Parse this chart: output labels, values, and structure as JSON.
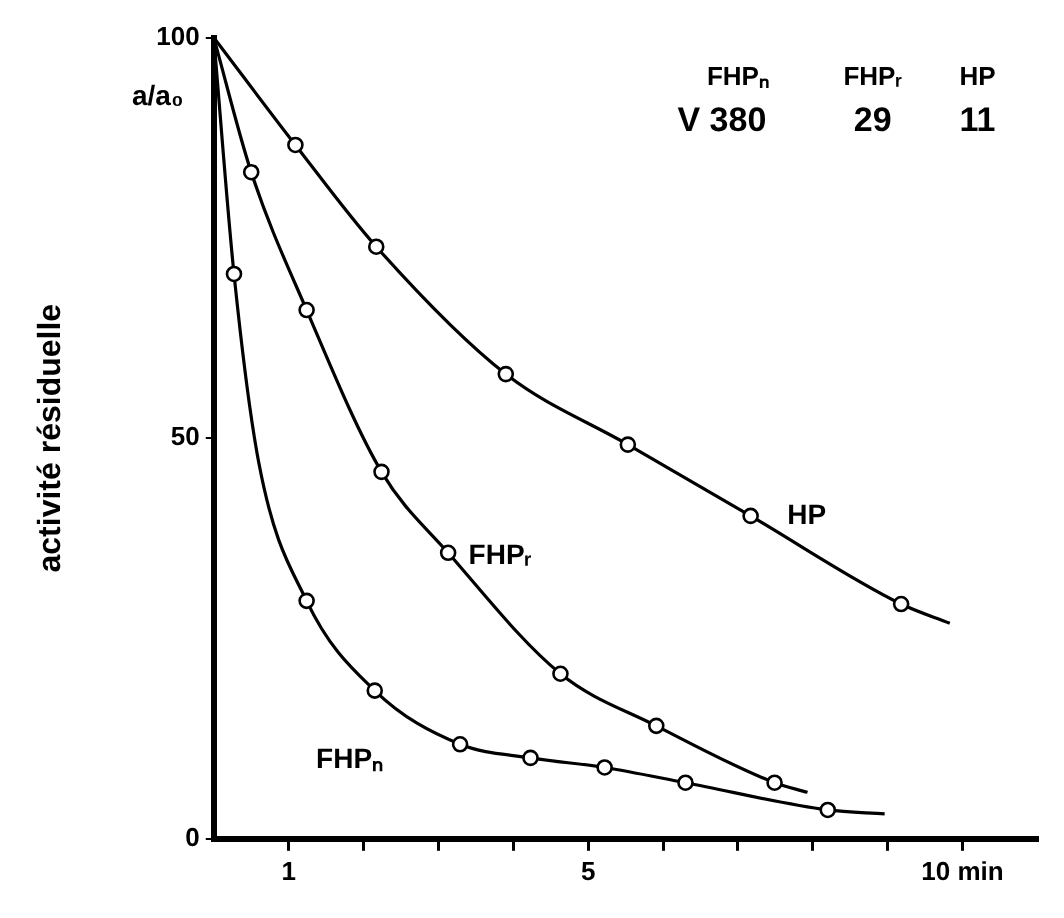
{
  "chart_data": {
    "type": "line",
    "ylabel": "activité résiduelle",
    "xlim": [
      0,
      11
    ],
    "ylim": [
      0,
      100
    ],
    "xticks": [
      {
        "value": 1,
        "label": "1"
      },
      {
        "value": 2,
        "label": null
      },
      {
        "value": 3,
        "label": null
      },
      {
        "value": 4,
        "label": null
      },
      5,
      {
        "value": 6,
        "label": null
      },
      {
        "value": 7,
        "label": null
      },
      {
        "value": 8,
        "label": null
      },
      {
        "value": 9,
        "label": null
      },
      {
        "value": 10,
        "label": "10 min"
      }
    ],
    "yticks": [
      0,
      50,
      100
    ],
    "grid": false,
    "legend": false,
    "annotations": [
      "a/a₀",
      "FHPₙ",
      "FHPᵣ",
      "HP",
      "V 380",
      "29",
      "11"
    ],
    "series": [
      {
        "name": "HP",
        "type": "line",
        "marker": "none",
        "color": "#000000",
        "x": [
          0,
          1.09,
          2.17,
          3.9,
          5.53,
          7.17,
          9.18,
          9.83
        ],
        "values": [
          100,
          86.6,
          73.9,
          58,
          49.2,
          40.3,
          29.3,
          26.9
        ]
      },
      {
        "name": "FHPᵣ",
        "type": "line",
        "marker": "none",
        "color": "#000000",
        "x": [
          0,
          0.5,
          1.24,
          2.24,
          3.13,
          4.63,
          5.91,
          7.49,
          7.93
        ],
        "values": [
          100,
          83.2,
          66,
          45.8,
          35.7,
          20.6,
          14.1,
          7.0,
          5.8
        ]
      },
      {
        "name": "FHPₙ",
        "type": "line",
        "marker": "none",
        "color": "#000000",
        "x": [
          0,
          0.27,
          0.6,
          1.24,
          2.15,
          3.29,
          4.23,
          5.22,
          6.3,
          8.2,
          8.96
        ],
        "values": [
          100,
          70.5,
          47,
          29.7,
          18.5,
          11.8,
          10.1,
          8.9,
          7.0,
          3.6,
          3.1
        ]
      },
      {
        "type": "scatter",
        "marker": "circle",
        "color": "#000000",
        "x": [
          1.09,
          2.17,
          3.9,
          5.53,
          7.17,
          9.18
        ],
        "values": [
          86.6,
          73.9,
          58,
          49.2,
          40.3,
          29.3
        ]
      },
      {
        "type": "scatter",
        "marker": "circle",
        "color": "#000000",
        "x": [
          0.5,
          1.24,
          2.24,
          3.13,
          4.63,
          5.91,
          7.49
        ],
        "values": [
          83.2,
          66,
          45.8,
          35.7,
          20.6,
          14.1,
          7.0
        ]
      },
      {
        "type": "scatter",
        "marker": "circle",
        "color": "#000000",
        "x": [
          0.27,
          1.24,
          2.15,
          3.29,
          4.23,
          5.22,
          6.3,
          8.2
        ],
        "values": [
          70.5,
          29.7,
          18.5,
          11.8,
          10.1,
          8.9,
          7.0,
          3.6
        ]
      }
    ]
  }
}
